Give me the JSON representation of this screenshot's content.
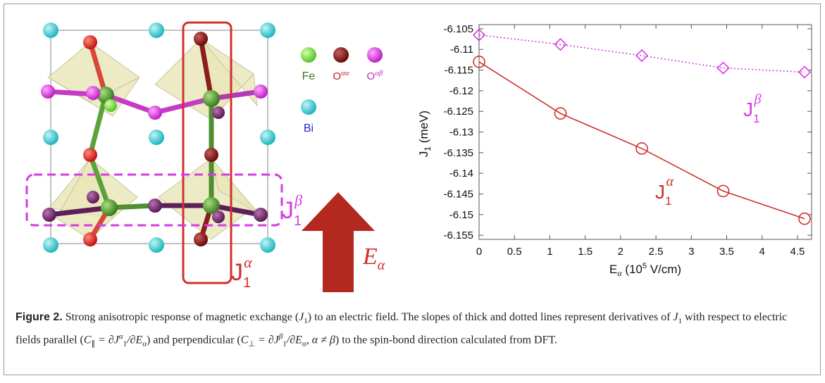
{
  "structure_panel": {
    "legend": [
      {
        "symbol": "Fe",
        "color": "#5fbf3a"
      },
      {
        "symbol": "O",
        "sup": "αα",
        "color": "#b01818"
      },
      {
        "symbol": "O",
        "sup": "αβ",
        "color": "#c02ac0"
      },
      {
        "symbol": "Bi",
        "color": "#27c9cf"
      }
    ],
    "j_alpha_label": {
      "base": "J",
      "sub": "1",
      "sup": "α"
    },
    "j_beta_label": {
      "base": "J",
      "sub": "1",
      "sup": "β"
    },
    "field_label": {
      "base": "E",
      "sub": "α"
    },
    "colors": {
      "alpha": "#d0312d",
      "beta": "#d53de0",
      "arrow": "#b3281f",
      "bi": "#27c9cf",
      "fe": "#4f8f2f",
      "polyhedron": "#e9e6b8"
    }
  },
  "chart_data": {
    "type": "line",
    "xlabel": "E",
    "xlabel_sub": "α",
    "xlabel_rest": " (10",
    "xlabel_sup": "5",
    "xlabel_unit": " V/cm)",
    "ylabel": "J",
    "ylabel_sub": "1",
    "ylabel_unit": " (meV)",
    "xlim": [
      0,
      4.7
    ],
    "ylim": [
      -6.156,
      -6.104
    ],
    "xticks": [
      "0",
      "0.5",
      "1",
      "1.5",
      "2",
      "2.5",
      "3",
      "3.5",
      "4",
      "4.5"
    ],
    "yticks": [
      "-6.105",
      "-6.11",
      "-6.115",
      "-6.12",
      "-6.125",
      "-6.13",
      "-6.135",
      "-6.14",
      "-6.145",
      "-6.15",
      "-6.155"
    ],
    "series": [
      {
        "label_base": "J",
        "label_sub": "1",
        "label_sup": "α",
        "marker": "circle",
        "line": "solid",
        "color": "#d0312d",
        "x": [
          0,
          1.15,
          2.3,
          3.45,
          4.6
        ],
        "y": [
          -6.113,
          -6.1255,
          -6.134,
          -6.1443,
          -6.151
        ]
      },
      {
        "label_base": "J",
        "label_sub": "1",
        "label_sup": "β",
        "marker": "diamond",
        "line": "dotted",
        "color": "#d53de0",
        "x": [
          0,
          1.15,
          2.3,
          3.45,
          4.6
        ],
        "y": [
          -6.1065,
          -6.1088,
          -6.1115,
          -6.1145,
          -6.1155
        ]
      }
    ]
  },
  "caption": {
    "label": "Figure 2.",
    "text1": " Strong anisotropic response of magnetic exchange (",
    "j": "J",
    "j_sub": "1",
    "text2": ") to an electric field. The slopes of thick and dotted lines represent derivatives of ",
    "text3": " with respect to electric fields parallel (",
    "c_par": "C",
    "c_par_sub": "∥",
    "eq_par": " = ∂J",
    "eq_par_sup": "α",
    "eq_par_sub": "1",
    "eq_par_den": "/∂E",
    "eq_par_den_sub": "α",
    "text4": ") and perpendicular (",
    "c_perp": "C",
    "c_perp_sub": "⊥",
    "eq_perp": " = ∂J",
    "eq_perp_sup": "β",
    "eq_perp_sub": "1",
    "eq_perp_den": "/∂E",
    "eq_perp_den_sub": "α",
    "eq_perp_cond": ", α ≠ β",
    "text5": ") to the spin-bond direction calculated from DFT."
  }
}
